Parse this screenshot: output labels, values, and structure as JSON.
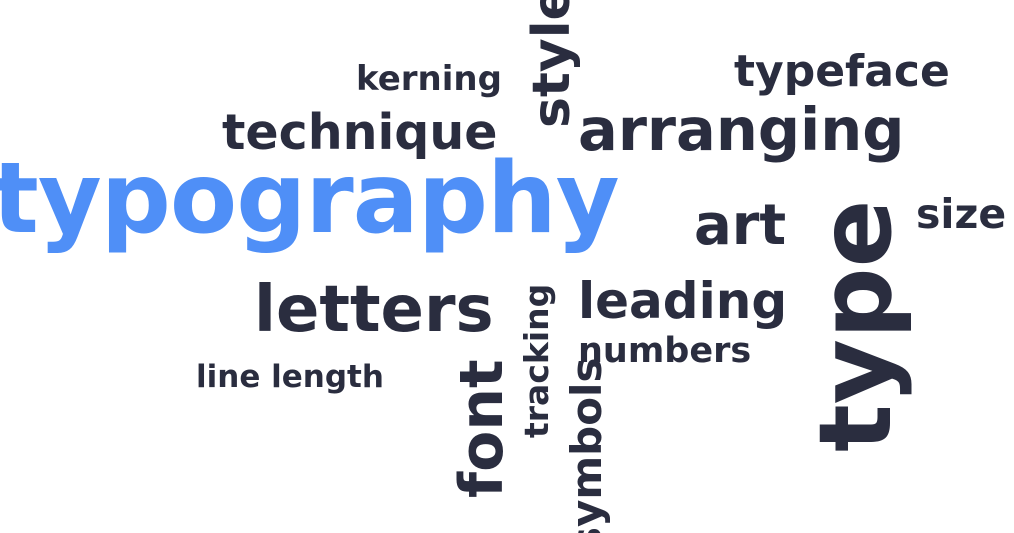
{
  "colors": {
    "primary_text": "#2a2d3f",
    "accent": "#4f8ff7",
    "background": "#ffffff"
  },
  "words": {
    "typography": "typography",
    "technique": "technique",
    "arranging": "arranging",
    "kerning": "kerning",
    "typeface": "typeface",
    "art": "art",
    "size": "size",
    "letters": "letters",
    "leading": "leading",
    "numbers": "numbers",
    "line_length": "line length",
    "style": "style",
    "type": "type",
    "font": "font",
    "tracking": "tracking",
    "symbols": "symbols"
  }
}
